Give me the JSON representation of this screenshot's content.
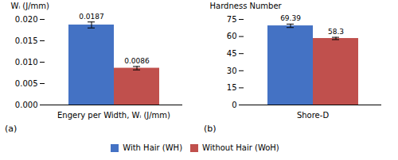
{
  "chart_data": [
    {
      "type": "bar",
      "title": "(a)",
      "ylabel": "Wᵢ (J/mm)",
      "categories": [
        "Engery per Width, Wᵢ (J/mm)"
      ],
      "series": [
        {
          "name": "With Hair (WH)",
          "color": "#4472C4",
          "values": [
            0.0187
          ],
          "errors": [
            0.0007
          ]
        },
        {
          "name": "Without Hair (WoH)",
          "color": "#C0504D",
          "values": [
            0.0086
          ],
          "errors": [
            0.0004
          ]
        }
      ],
      "ylim": [
        0,
        0.02
      ],
      "yticks": [
        {
          "value": 0,
          "label": "0.000"
        },
        {
          "value": 0.005,
          "label": "0.005"
        },
        {
          "value": 0.01,
          "label": "0.010"
        },
        {
          "value": 0.015,
          "label": "0.015"
        },
        {
          "value": 0.02,
          "label": "0.020"
        }
      ],
      "data_labels": true,
      "legend": "bottom"
    },
    {
      "type": "bar",
      "title": "(b)",
      "ylabel": "Hardness Number",
      "categories": [
        "Shore-D"
      ],
      "series": [
        {
          "name": "With Hair (WH)",
          "color": "#4472C4",
          "values": [
            69.39
          ],
          "errors": [
            1.5
          ]
        },
        {
          "name": "Without Hair (WoH)",
          "color": "#C0504D",
          "values": [
            58.3
          ],
          "errors": [
            1.0
          ]
        }
      ],
      "ylim": [
        0,
        75
      ],
      "yticks": [
        0,
        15,
        30,
        45,
        60,
        75
      ],
      "data_labels": true,
      "legend": "bottom"
    }
  ]
}
